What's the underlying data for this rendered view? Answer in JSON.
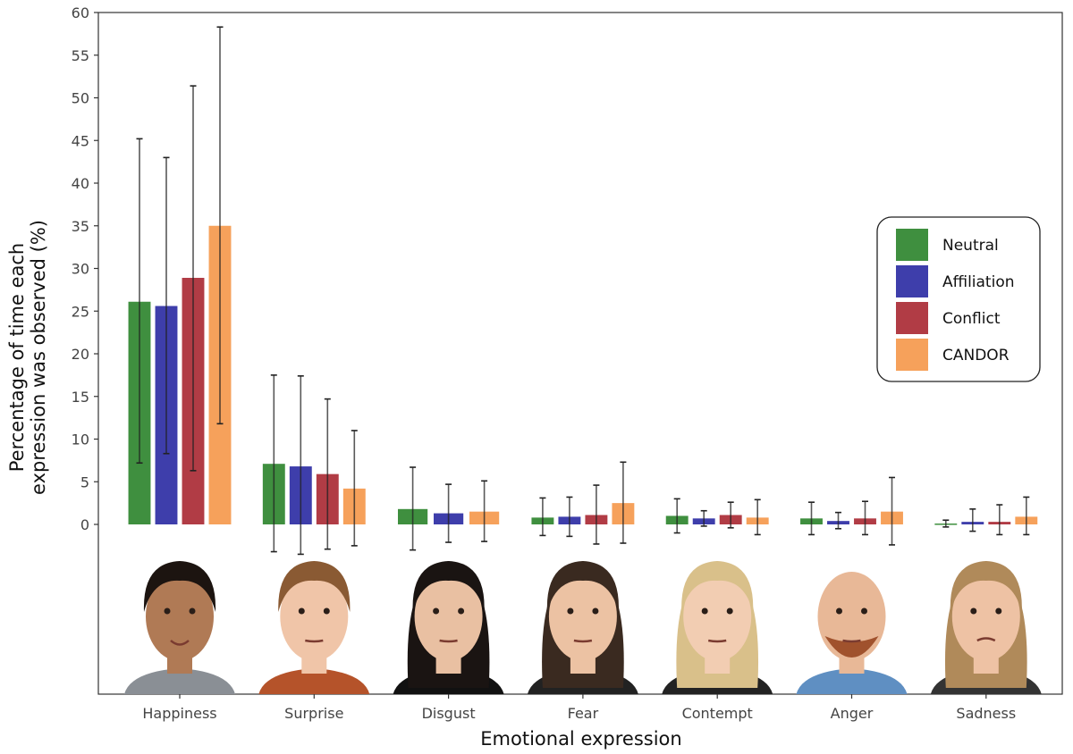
{
  "chart_data": {
    "type": "bar",
    "xlabel": "Emotional expression",
    "ylabel_lines": [
      "Percentage of time each",
      "expression was observed (%)"
    ],
    "ylim": [
      0,
      60
    ],
    "yticks": [
      0,
      5,
      10,
      15,
      20,
      25,
      30,
      35,
      40,
      45,
      50,
      55,
      60
    ],
    "grid": false,
    "legend_position": "right",
    "categories": [
      "Happiness",
      "Surprise",
      "Disgust",
      "Fear",
      "Contempt",
      "Anger",
      "Sadness"
    ],
    "series": [
      {
        "name": "Neutral",
        "color": "#3f8f3f",
        "values": [
          26.1,
          7.1,
          1.8,
          0.8,
          1.0,
          0.7,
          0.1
        ],
        "err_high": [
          45.2,
          17.5,
          6.7,
          3.1,
          3.0,
          2.6,
          0.5
        ],
        "err_low": [
          7.2,
          -3.2,
          -3.0,
          -1.3,
          -1.0,
          -1.2,
          -0.3
        ]
      },
      {
        "name": "Affiliation",
        "color": "#3e3eab",
        "values": [
          25.6,
          6.8,
          1.3,
          0.9,
          0.7,
          0.4,
          0.3
        ],
        "err_high": [
          43.0,
          17.4,
          4.7,
          3.2,
          1.6,
          1.4,
          1.8
        ],
        "err_low": [
          8.3,
          -3.5,
          -2.1,
          -1.4,
          -0.2,
          -0.5,
          -0.8
        ]
      },
      {
        "name": "Conflict",
        "color": "#b13c45",
        "values": [
          28.9,
          5.9,
          null,
          1.1,
          1.1,
          0.7,
          0.3
        ],
        "err_high": [
          51.4,
          14.7,
          null,
          4.6,
          2.6,
          2.7,
          2.3
        ],
        "err_low": [
          6.3,
          -2.9,
          null,
          -2.3,
          -0.4,
          -1.2,
          -1.2
        ]
      },
      {
        "name": "CANDOR",
        "color": "#f6a15b",
        "values": [
          35.0,
          4.2,
          1.5,
          2.5,
          0.8,
          1.5,
          0.9
        ],
        "err_high": [
          58.3,
          11.0,
          5.1,
          7.3,
          2.9,
          5.5,
          3.2
        ],
        "err_low": [
          11.8,
          -2.5,
          -2.0,
          -2.2,
          -1.2,
          -2.4,
          -1.2
        ]
      }
    ]
  }
}
